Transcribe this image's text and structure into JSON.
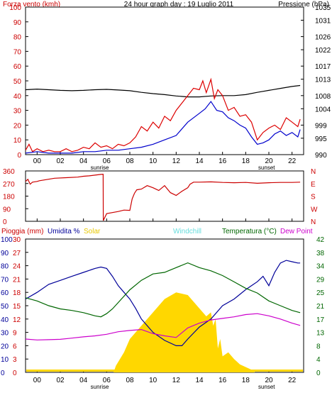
{
  "chart_data": [
    {
      "type": "line",
      "title": "24 hour graph day : 19 Luglio 2011",
      "left_axis_label": "Forza vento (kmh)",
      "right_axis_label": "Pressione (hPa)",
      "x_ticks": [
        "00",
        "02",
        "04",
        "06",
        "08",
        "10",
        "12",
        "14",
        "16",
        "18",
        "20",
        "22"
      ],
      "sunrise_label": "sunrise",
      "sunset_label": "sunset",
      "sunrise_hour": 6.4,
      "sunset_hour": 20.8,
      "left_ticks": [
        0,
        5,
        10,
        15,
        20,
        25,
        30,
        35,
        40,
        45,
        50,
        55,
        60,
        65,
        70,
        75,
        80,
        85,
        90,
        95,
        100
      ],
      "right_ticks": [
        990,
        995,
        999,
        1004,
        1008,
        1013,
        1017,
        1022,
        1026,
        1031,
        1035
      ],
      "ylim_left": [
        0,
        100
      ],
      "ylim_right": [
        990,
        1035
      ],
      "series": [
        {
          "axis": "right",
          "color": "#000000",
          "x": [
            0,
            1,
            2,
            3,
            4,
            5,
            6,
            7,
            8,
            9,
            10,
            11,
            12,
            13,
            14,
            15,
            16,
            17,
            18,
            19,
            20,
            21,
            22,
            23,
            23.7
          ],
          "y": [
            1009.8,
            1010.0,
            1009.8,
            1009.6,
            1009.5,
            1009.6,
            1009.8,
            1009.9,
            1009.7,
            1009.5,
            1009.0,
            1008.6,
            1008.3,
            1007.9,
            1007.6,
            1007.6,
            1007.9,
            1008.0,
            1008.0,
            1008.3,
            1009.0,
            1009.6,
            1010.2,
            1010.8,
            1011.1
          ]
        },
        {
          "axis": "left",
          "color": "#dd0000",
          "x": [
            0,
            0.3,
            0.6,
            1,
            1.5,
            2,
            2.5,
            3,
            3.5,
            4,
            4.5,
            5,
            5.5,
            6,
            6.5,
            7,
            7.5,
            8,
            8.5,
            9,
            9.5,
            10,
            10.5,
            11,
            11.5,
            12,
            12.5,
            13,
            13.5,
            14,
            14.5,
            15,
            15.3,
            15.6,
            16,
            16.3,
            16.6,
            17,
            17.5,
            18,
            18.5,
            19,
            19.5,
            20,
            20.5,
            21,
            21.5,
            22,
            22.5,
            23,
            23.5,
            23.7
          ],
          "y": [
            3,
            7,
            2,
            4,
            2,
            3,
            2,
            2,
            4,
            2,
            3,
            5,
            4,
            8,
            5,
            6,
            4,
            7,
            6,
            8,
            12,
            19,
            16,
            22,
            18,
            26,
            23,
            30,
            35,
            40,
            45,
            44,
            50,
            42,
            51,
            38,
            44,
            40,
            30,
            32,
            26,
            27,
            22,
            10,
            15,
            18,
            20,
            17,
            25,
            22,
            19,
            24
          ]
        },
        {
          "axis": "left",
          "color": "#0000cc",
          "x": [
            0,
            1,
            2,
            3,
            4,
            5,
            6,
            7,
            8,
            9,
            10,
            11,
            12,
            13,
            14,
            15,
            15.5,
            16,
            16.5,
            17,
            17.5,
            18,
            18.5,
            19,
            19.5,
            20,
            20.5,
            21,
            21.5,
            22,
            22.5,
            23,
            23.5,
            23.7
          ],
          "y": [
            1,
            2,
            1,
            1,
            1,
            2,
            2,
            3,
            3,
            4,
            5,
            7,
            10,
            13,
            22,
            28,
            31,
            36,
            30,
            29,
            25,
            23,
            20,
            18,
            12,
            7,
            8,
            10,
            14,
            16,
            13,
            15,
            12,
            17
          ]
        }
      ]
    },
    {
      "type": "line",
      "left_ticks": [
        0,
        90,
        180,
        270,
        360
      ],
      "right_ticks": [
        "N",
        "W",
        "S",
        "E",
        "N"
      ],
      "ylim": [
        0,
        360
      ],
      "series": [
        {
          "color": "#cc0000",
          "x": [
            0,
            0.2,
            0.4,
            0.6,
            1.0,
            1.2,
            2.5,
            3.5,
            4.5,
            5.0,
            5.5,
            6.0,
            6.5,
            6.7,
            6.71,
            7.0,
            8.0,
            8.5,
            9.0,
            9.2,
            9.4,
            9.6,
            10.0,
            10.5,
            11.0,
            11.5,
            12.0,
            12.5,
            13.0,
            13.5,
            14.0,
            14.2,
            14.5,
            15,
            16,
            17,
            18,
            19,
            20,
            21,
            22,
            23,
            23.7
          ],
          "y": [
            285,
            300,
            265,
            280,
            285,
            290,
            308,
            312,
            316,
            322,
            325,
            330,
            335,
            336,
            5,
            55,
            70,
            80,
            78,
            160,
            200,
            225,
            230,
            255,
            240,
            220,
            255,
            205,
            185,
            215,
            240,
            265,
            280,
            280,
            282,
            278,
            276,
            278,
            272,
            276,
            278,
            278,
            280
          ]
        }
      ]
    },
    {
      "type": "line",
      "labels": {
        "rain": "Pioggia (mm)",
        "humidity": "Umidita %",
        "solar": "Solar",
        "windchill": "Windchill",
        "temperature": "Temperatura (°C)",
        "dewpoint": "Dew Point"
      },
      "left_ticks_humidity": [
        0,
        10,
        20,
        30,
        40,
        50,
        60,
        70,
        80,
        90,
        100
      ],
      "left_ticks_rain": [
        0,
        3,
        6,
        9,
        12,
        15,
        18,
        21,
        24,
        27,
        30
      ],
      "right_ticks": [
        0,
        4,
        8,
        13,
        17,
        21,
        25,
        29,
        34,
        38,
        42
      ],
      "ylim_humidity": [
        0,
        100
      ],
      "ylim_temperature": [
        0,
        42
      ],
      "series": [
        {
          "name": "Umidita %",
          "color": "#000099",
          "x": [
            0,
            1,
            2,
            3,
            4,
            5,
            6,
            6.5,
            7,
            7.5,
            8,
            8.5,
            9,
            9.5,
            10,
            11,
            12,
            13,
            13.5,
            14,
            15,
            16,
            17,
            18,
            19,
            19.5,
            20,
            20.5,
            21,
            21.5,
            22,
            22.5,
            23,
            23.5,
            23.7
          ],
          "y": [
            55,
            60,
            66,
            69,
            72,
            75,
            78,
            79,
            78,
            72,
            65,
            60,
            55,
            48,
            40,
            30,
            24,
            20,
            20,
            25,
            34,
            40,
            50,
            55,
            62,
            65,
            68,
            72,
            65,
            75,
            82,
            84,
            83,
            82,
            82
          ]
        },
        {
          "name": "Temperatura (°C)",
          "color": "#006600",
          "x": [
            0,
            1,
            2,
            3,
            4,
            5,
            6,
            6.5,
            7,
            7.5,
            8,
            9,
            10,
            11,
            12,
            13,
            14,
            15,
            16,
            17,
            18,
            19,
            20,
            21,
            22,
            23,
            23.7
          ],
          "y": [
            23.5,
            22.5,
            21,
            20,
            19.5,
            18.8,
            17.8,
            17.5,
            18.5,
            20,
            22,
            26,
            29,
            31,
            31.5,
            33,
            34.5,
            33,
            32,
            30.5,
            28.5,
            26.5,
            25,
            22.5,
            21,
            19.5,
            18.8
          ]
        },
        {
          "name": "Dew Point",
          "color": "#cc00cc",
          "x": [
            0,
            1,
            2,
            3,
            4,
            5,
            6,
            7,
            8,
            9,
            10,
            11,
            12,
            13,
            14,
            15,
            16,
            17,
            18,
            19,
            20,
            21,
            22,
            23,
            23.7
          ],
          "y": [
            10.5,
            10.2,
            10.3,
            10.4,
            10.8,
            11.2,
            11.5,
            12,
            12.8,
            13.2,
            13.5,
            12.2,
            11.5,
            11,
            14,
            15.5,
            16.5,
            17,
            17.5,
            18.2,
            18.5,
            17.8,
            16.8,
            15.5,
            14.8
          ]
        },
        {
          "name": "Solar",
          "color": "#ffd700",
          "x": [
            0,
            7.6,
            7.8,
            8.5,
            9,
            10,
            11,
            12,
            13,
            14,
            15,
            15.6,
            16,
            16.2,
            16.4,
            16.6,
            16.8,
            17.0,
            17.5,
            18,
            18.5,
            19,
            19.5,
            19.8,
            23.7
          ],
          "y": [
            0,
            0,
            5,
            15,
            25,
            35,
            45,
            55,
            60,
            58,
            48,
            42,
            45,
            35,
            40,
            18,
            25,
            12,
            15,
            10,
            6,
            4,
            2,
            0,
            0
          ]
        }
      ]
    }
  ]
}
